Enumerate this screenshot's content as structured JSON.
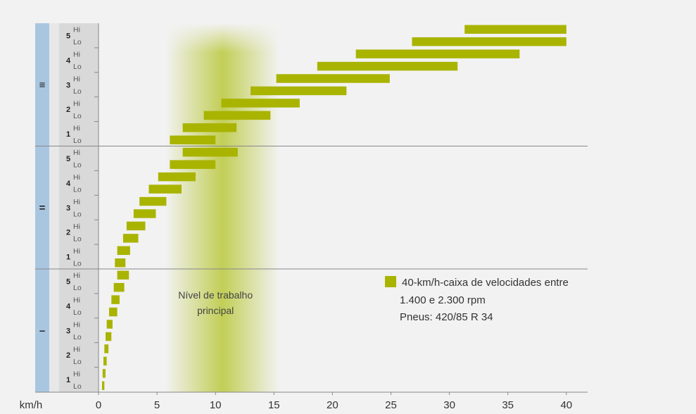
{
  "chart_data": {
    "type": "bar",
    "subtype": "floating-range-bar",
    "xlabel": "km/h",
    "xlim": [
      0,
      42
    ],
    "xticks": [
      0,
      5,
      10,
      15,
      20,
      25,
      30,
      35,
      40
    ],
    "band_label": "Nível de trabalho principal",
    "band_label_lines": [
      "Nível de trabalho",
      "principal"
    ],
    "band_range": [
      5,
      15
    ],
    "bar_color": "#a9b400",
    "band_color": "#b9c83a",
    "group_color": "#a9c6e0",
    "legend": {
      "position": "right",
      "lines": [
        "40-km/h-caixa de velocidades entre",
        "1.400 e 2.300 rpm",
        "Pneus: 420/85 R 34"
      ]
    },
    "groups": [
      {
        "label": "≡",
        "rows": [
          {
            "gear": "5",
            "mode": "Hi",
            "start": 31.3,
            "end": 40
          },
          {
            "gear": "5",
            "mode": "Lo",
            "start": 26.8,
            "end": 40
          },
          {
            "gear": "4",
            "mode": "Hi",
            "start": 22,
            "end": 36
          },
          {
            "gear": "4",
            "mode": "Lo",
            "start": 18.7,
            "end": 30.7
          },
          {
            "gear": "3",
            "mode": "Hi",
            "start": 15.2,
            "end": 24.9
          },
          {
            "gear": "3",
            "mode": "Lo",
            "start": 13,
            "end": 21.2
          },
          {
            "gear": "2",
            "mode": "Hi",
            "start": 10.5,
            "end": 17.2
          },
          {
            "gear": "2",
            "mode": "Lo",
            "start": 9,
            "end": 14.7
          },
          {
            "gear": "1",
            "mode": "Hi",
            "start": 7.2,
            "end": 11.8
          },
          {
            "gear": "1",
            "mode": "Lo",
            "start": 6.1,
            "end": 10
          }
        ]
      },
      {
        "label": "=",
        "rows": [
          {
            "gear": "5",
            "mode": "Hi",
            "start": 7.2,
            "end": 11.9
          },
          {
            "gear": "5",
            "mode": "Lo",
            "start": 6.1,
            "end": 10
          },
          {
            "gear": "4",
            "mode": "Hi",
            "start": 5.1,
            "end": 8.3
          },
          {
            "gear": "4",
            "mode": "Lo",
            "start": 4.3,
            "end": 7.1
          },
          {
            "gear": "3",
            "mode": "Hi",
            "start": 3.5,
            "end": 5.8
          },
          {
            "gear": "3",
            "mode": "Lo",
            "start": 3,
            "end": 4.9
          },
          {
            "gear": "2",
            "mode": "Hi",
            "start": 2.4,
            "end": 4
          },
          {
            "gear": "2",
            "mode": "Lo",
            "start": 2.1,
            "end": 3.4
          },
          {
            "gear": "1",
            "mode": "Hi",
            "start": 1.6,
            "end": 2.7
          },
          {
            "gear": "1",
            "mode": "Lo",
            "start": 1.4,
            "end": 2.3
          }
        ]
      },
      {
        "label": "–",
        "rows": [
          {
            "gear": "5",
            "mode": "Hi",
            "start": 1.6,
            "end": 2.6
          },
          {
            "gear": "5",
            "mode": "Lo",
            "start": 1.3,
            "end": 2.2
          },
          {
            "gear": "4",
            "mode": "Hi",
            "start": 1.1,
            "end": 1.8
          },
          {
            "gear": "4",
            "mode": "Lo",
            "start": 0.9,
            "end": 1.6
          },
          {
            "gear": "3",
            "mode": "Hi",
            "start": 0.7,
            "end": 1.2
          },
          {
            "gear": "3",
            "mode": "Lo",
            "start": 0.6,
            "end": 1.1
          },
          {
            "gear": "2",
            "mode": "Hi",
            "start": 0.5,
            "end": 0.85
          },
          {
            "gear": "2",
            "mode": "Lo",
            "start": 0.42,
            "end": 0.7
          },
          {
            "gear": "1",
            "mode": "Hi",
            "start": 0.35,
            "end": 0.6
          },
          {
            "gear": "1",
            "mode": "Lo",
            "start": 0.3,
            "end": 0.5
          }
        ]
      }
    ]
  }
}
